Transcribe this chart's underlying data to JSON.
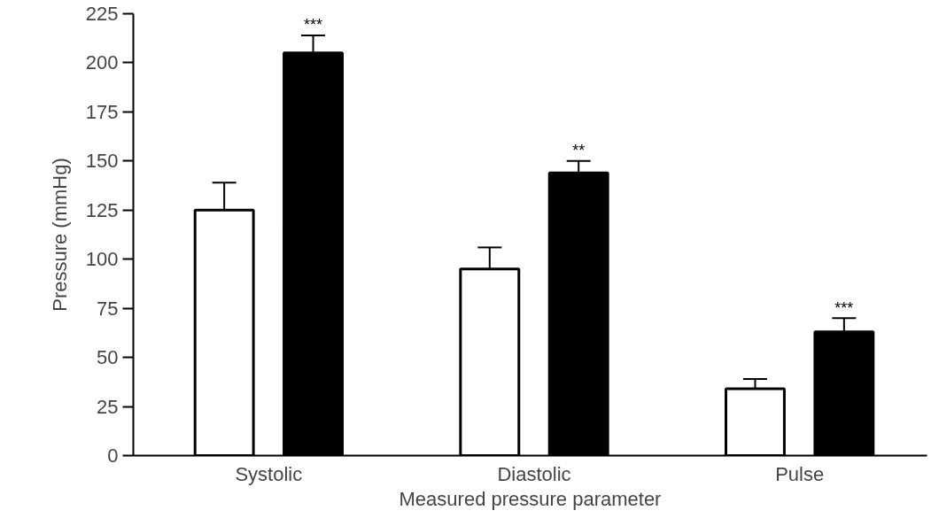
{
  "chart_data": {
    "type": "bar",
    "xlabel": "Measured pressure parameter",
    "ylabel": "Pressure (mmHg)",
    "categories": [
      "Systolic",
      "Diastolic",
      "Pulse"
    ],
    "series": [
      {
        "color": "#ffffff",
        "values": [
          125,
          95,
          34
        ],
        "errors": [
          [
            125,
            139
          ],
          [
            95,
            106
          ],
          [
            34,
            39
          ]
        ]
      },
      {
        "color": "#000000",
        "values": [
          205,
          144,
          63
        ],
        "errors": [
          [
            205,
            214
          ],
          [
            144,
            150
          ],
          [
            63,
            70
          ]
        ]
      }
    ],
    "ylim": [
      0,
      225
    ],
    "yticks": [
      0,
      25,
      50,
      75,
      100,
      125,
      150,
      175,
      200,
      225
    ],
    "annotations": [
      "***",
      "**",
      "***"
    ],
    "grid": false
  }
}
